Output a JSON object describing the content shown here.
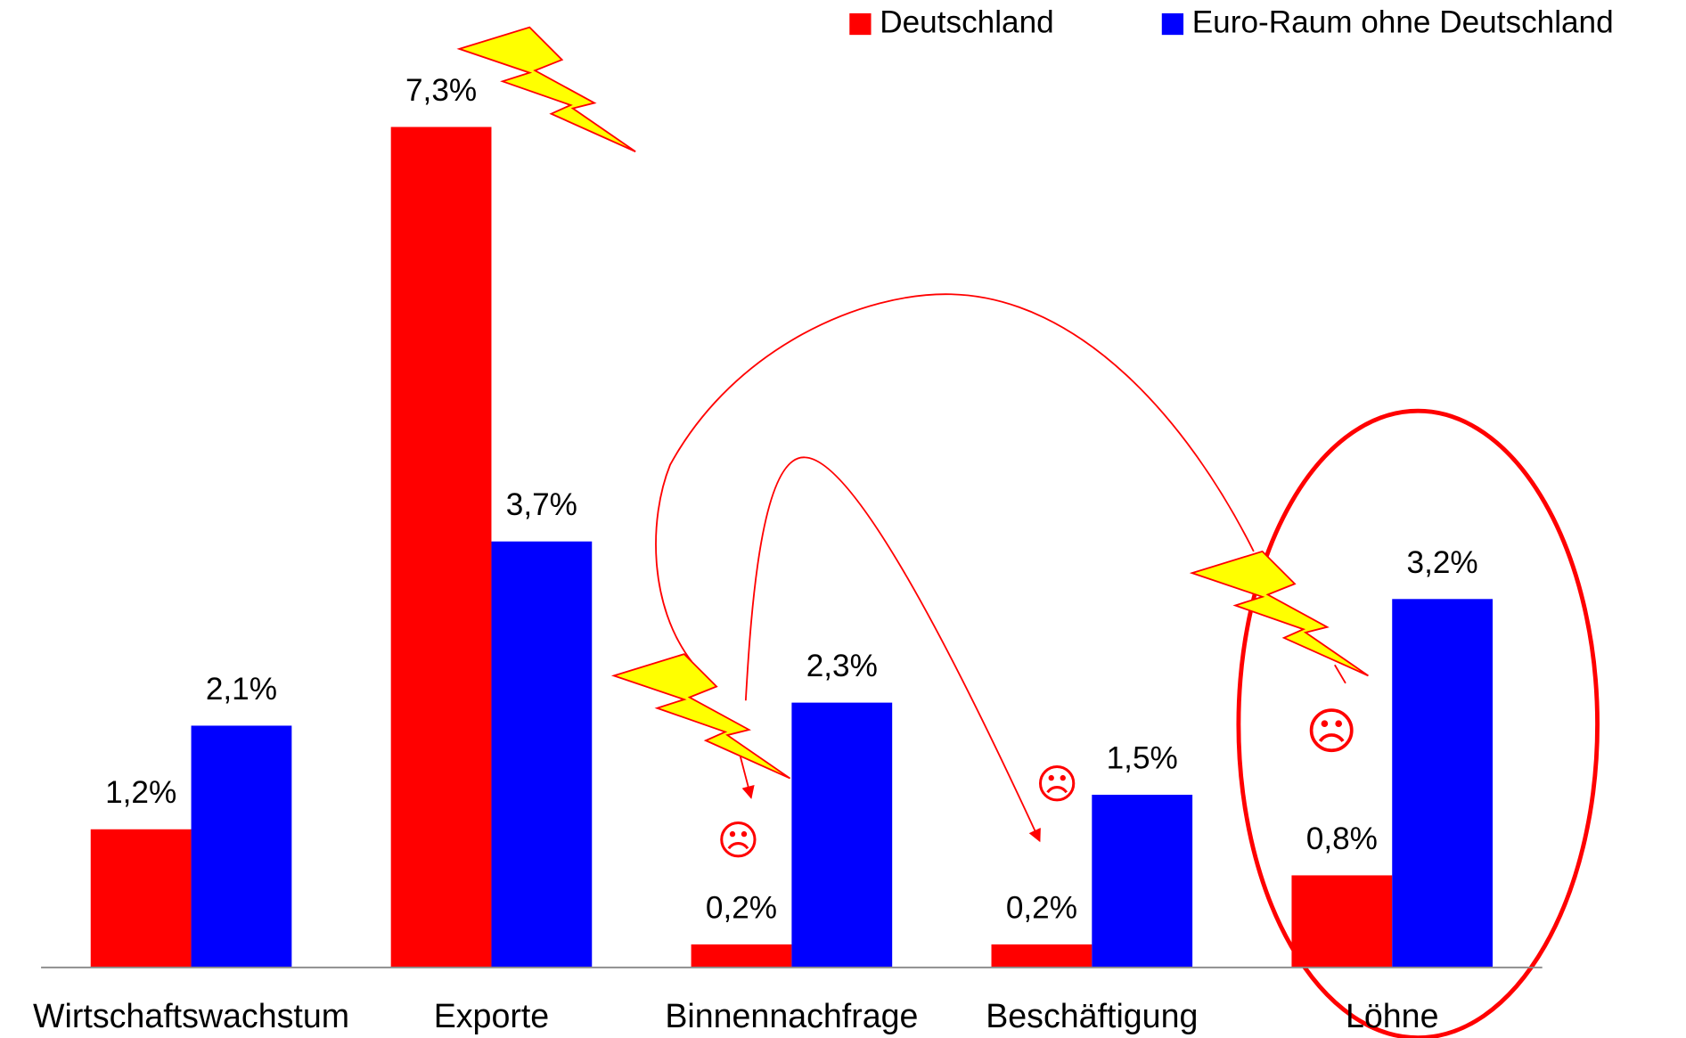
{
  "chart_data": {
    "type": "bar",
    "categories": [
      "Wirtschaftswachstum",
      "Exporte",
      "Binnennachfrage",
      "Beschäftigung",
      "Löhne"
    ],
    "series": [
      {
        "name": "Deutschland",
        "color": "#ff0000",
        "values": [
          1.2,
          7.3,
          0.2,
          0.2,
          0.8
        ],
        "value_labels": [
          "1,2%",
          "7,3%",
          "0,2%",
          "0,2%",
          "0,8%"
        ]
      },
      {
        "name": "Euro-Raum ohne Deutschland",
        "color": "#0000ff",
        "values": [
          2.1,
          3.7,
          2.3,
          1.5,
          3.2
        ],
        "value_labels": [
          "2,1%",
          "3,7%",
          "2,3%",
          "1,5%",
          "3,2%"
        ]
      }
    ],
    "ylim": [
      0,
      8.4
    ],
    "grid": false,
    "legend": "top-right",
    "annotations": [
      "☹",
      "☹",
      "☹"
    ]
  }
}
